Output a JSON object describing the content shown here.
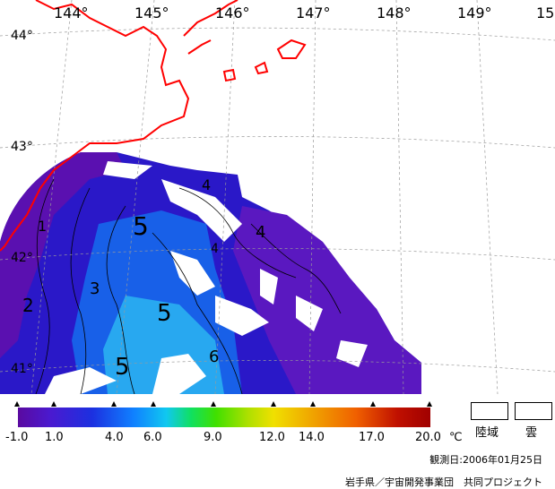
{
  "map": {
    "lon_labels": [
      "144°",
      "145°",
      "146°",
      "147°",
      "148°",
      "149°",
      "15"
    ],
    "lat_labels": [
      "44°",
      "43°",
      "42°",
      "41°"
    ],
    "contour_labels": [
      "1",
      "2",
      "3",
      "4",
      "4",
      "4",
      "5",
      "5",
      "5",
      "6"
    ]
  },
  "legend": {
    "ticks": [
      "-1.0",
      "1.0",
      "4.0",
      "6.0",
      "9.0",
      "12.0",
      "14.0",
      "17.0",
      "20.0"
    ],
    "unit": "℃",
    "land_label": "陸域",
    "cloud_label": "雲"
  },
  "date_text": "観測日:2006年01月25日",
  "credit_text": "岩手県／宇宙開発事業団　共同プロジェクト",
  "colors": {
    "coast": "#ff0000",
    "grid": "#9a9a9a"
  }
}
